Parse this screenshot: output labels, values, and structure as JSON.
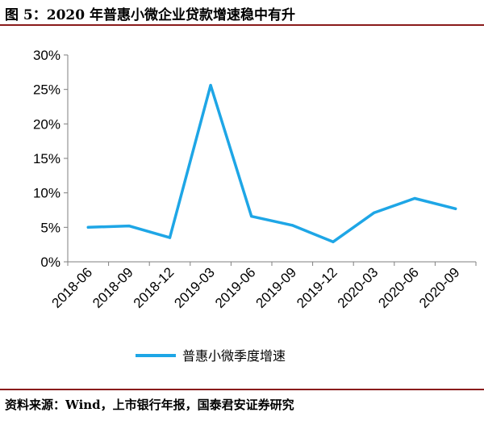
{
  "header": {
    "title": "图 5：2020 年普惠小微企业贷款增速稳中有升"
  },
  "footer": {
    "source": "资料来源：Wind，上市银行年报，国泰君安证券研究"
  },
  "colors": {
    "series": "#1ea6e6",
    "axis": "#7f7f7f",
    "rule": "#8a1c1c"
  },
  "chart_data": {
    "type": "line",
    "title": "",
    "xlabel": "",
    "ylabel": "",
    "categories": [
      "2018-06",
      "2018-09",
      "2018-12",
      "2019-03",
      "2019-06",
      "2019-09",
      "2019-12",
      "2020-03",
      "2020-06",
      "2020-09"
    ],
    "yticks": [
      "0%",
      "5%",
      "10%",
      "15%",
      "20%",
      "25%",
      "30%"
    ],
    "ylim": [
      0,
      30
    ],
    "grid": false,
    "legend_position": "bottom",
    "series": [
      {
        "name": "普惠小微季度增速",
        "values": [
          5.0,
          5.2,
          3.5,
          25.6,
          6.6,
          5.3,
          2.9,
          7.1,
          9.2,
          7.7
        ]
      }
    ]
  }
}
